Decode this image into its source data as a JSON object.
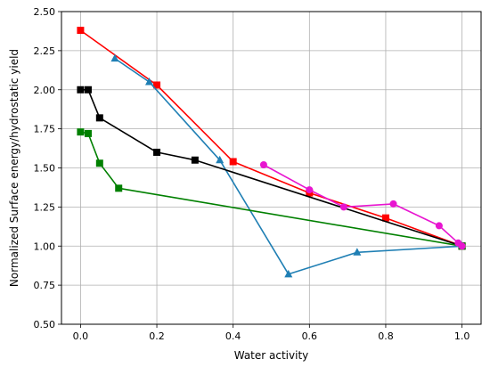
{
  "chart_data": {
    "type": "line",
    "title": "",
    "xlabel": "Water activity",
    "ylabel": "Normalized Surface energy/hydrostatic yield",
    "xlim": [
      -0.05,
      1.05
    ],
    "ylim": [
      0.5,
      2.5
    ],
    "xticks": [
      0.0,
      0.2,
      0.4,
      0.6,
      0.8,
      1.0
    ],
    "xtick_labels": [
      "0.0",
      "0.2",
      "0.4",
      "0.6",
      "0.8",
      "1.0"
    ],
    "yticks": [
      0.5,
      0.75,
      1.0,
      1.25,
      1.5,
      1.75,
      2.0,
      2.25,
      2.5
    ],
    "ytick_labels": [
      "0.50",
      "0.75",
      "1.00",
      "1.25",
      "1.50",
      "1.75",
      "2.00",
      "2.25",
      "2.50"
    ],
    "grid": true,
    "series": [
      {
        "color": "#ff0000",
        "marker": "square",
        "x": [
          0.0,
          0.2,
          0.4,
          0.6,
          0.8,
          1.0
        ],
        "y": [
          2.38,
          2.03,
          1.54,
          1.34,
          1.18,
          1.0
        ]
      },
      {
        "color": "#1f7fb4",
        "marker": "triangle",
        "x": [
          0.09,
          0.18,
          0.365,
          0.545,
          0.725,
          1.0
        ],
        "y": [
          2.2,
          2.05,
          1.55,
          0.82,
          0.96,
          1.0
        ]
      },
      {
        "color": "#000000",
        "marker": "square",
        "x": [
          0.0,
          0.02,
          0.05,
          0.2,
          0.3,
          1.0
        ],
        "y": [
          2.0,
          2.0,
          1.82,
          1.6,
          1.55,
          1.0
        ]
      },
      {
        "color": "#008000",
        "marker": "square",
        "x": [
          0.0,
          0.02,
          0.05,
          0.1,
          1.0
        ],
        "y": [
          1.73,
          1.72,
          1.53,
          1.37,
          1.0
        ]
      },
      {
        "color": "#e815d0",
        "marker": "circle",
        "x": [
          0.48,
          0.6,
          0.69,
          0.82,
          0.94,
          0.99,
          1.0
        ],
        "y": [
          1.52,
          1.36,
          1.25,
          1.27,
          1.13,
          1.02,
          1.0
        ]
      }
    ]
  }
}
